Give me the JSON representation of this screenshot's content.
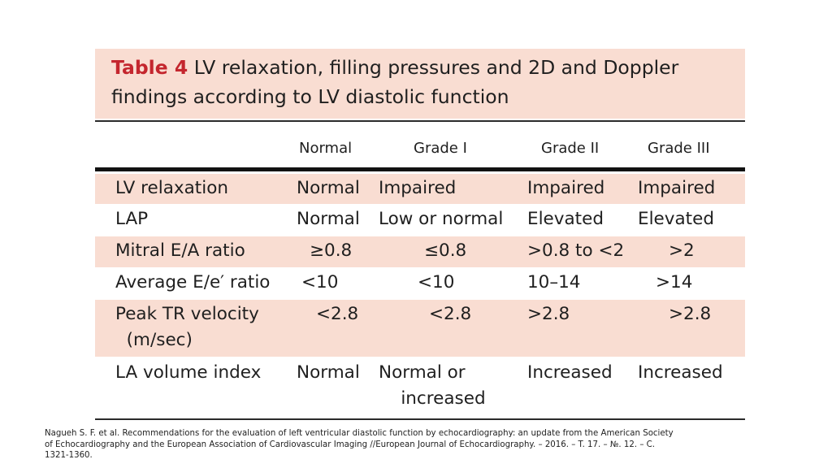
{
  "table": {
    "label": "Table 4",
    "title_line1": "LV relaxation, filling pressures and 2D and Doppler",
    "title_line2": "findings according to LV diastolic function",
    "columns": [
      "Normal",
      "Grade I",
      "Grade II",
      "Grade III"
    ],
    "rows": [
      {
        "label": "LV relaxation",
        "cells": [
          "Normal",
          "Impaired",
          "Impaired",
          "Impaired"
        ],
        "shaded": true
      },
      {
        "label": "LAP",
        "cells": [
          "Normal",
          "Low or normal",
          "Elevated",
          "Elevated"
        ],
        "shaded": false
      },
      {
        "label": "Mitral E/A ratio",
        "cells": [
          "≥0.8",
          "≤0.8",
          ">0.8 to <2",
          ">2"
        ],
        "shaded": true
      },
      {
        "label": "Average E/e′ ratio",
        "cells": [
          "<10",
          "<10",
          "10–14",
          ">14"
        ],
        "shaded": false
      },
      {
        "label": "Peak TR velocity\n  (m/sec)",
        "cells": [
          "<2.8",
          "<2.8",
          ">2.8",
          ">2.8"
        ],
        "shaded": true
      },
      {
        "label": "LA volume index",
        "cells": [
          "Normal",
          "Normal or\n    increased",
          "Increased",
          "Increased"
        ],
        "shaded": false
      }
    ],
    "colors": {
      "shade": "#f9ddd2",
      "label_red": "#c4262e"
    }
  },
  "citation": "Nagueh S. F. et al. Recommendations for the evaluation of left ventricular diastolic function by echocardiography: an update from the American Society of Echocardiography and the European Association of Cardiovascular Imaging //European Journal of Echocardiography. – 2016. – T. 17. – №. 12. – C. 1321-1360."
}
